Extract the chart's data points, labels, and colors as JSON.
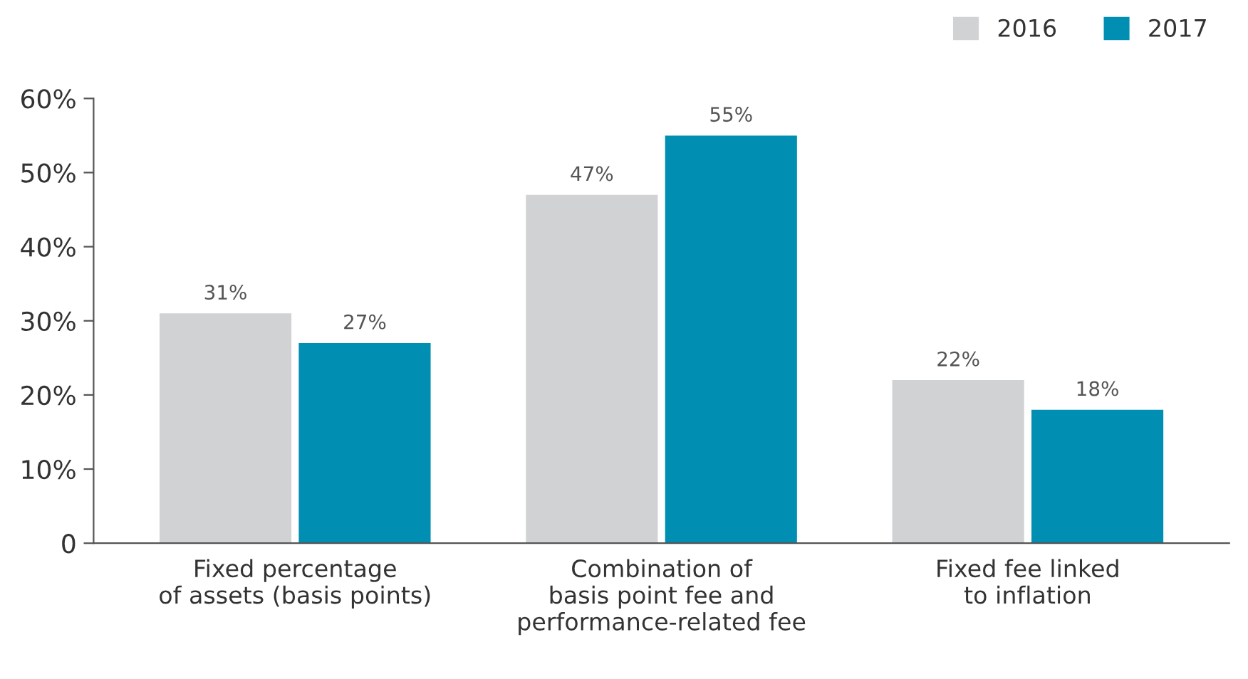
{
  "chart_data": {
    "type": "bar",
    "categories": [
      "Fixed percentage\nof assets (basis points)",
      "Combination of\nbasis point fee and\nperformance-related fee",
      "Fixed fee linked\nto inflation"
    ],
    "series": [
      {
        "name": "2016",
        "color": "#d1d2d4",
        "values": [
          31,
          47,
          22
        ],
        "value_labels": [
          "31%",
          "47%",
          "22%"
        ]
      },
      {
        "name": "2017",
        "color": "#008fb3",
        "values": [
          27,
          55,
          18
        ],
        "value_labels": [
          "27%",
          "55%",
          "18%"
        ]
      }
    ],
    "ylim": [
      0,
      60
    ],
    "yticks": [
      {
        "value": 0,
        "label": "0"
      },
      {
        "value": 10,
        "label": "10%"
      },
      {
        "value": 20,
        "label": "20%"
      },
      {
        "value": 30,
        "label": "30%"
      },
      {
        "value": 40,
        "label": "40%"
      },
      {
        "value": 50,
        "label": "50%"
      },
      {
        "value": 60,
        "label": "60%"
      }
    ],
    "grid": false,
    "legend": "top right"
  }
}
